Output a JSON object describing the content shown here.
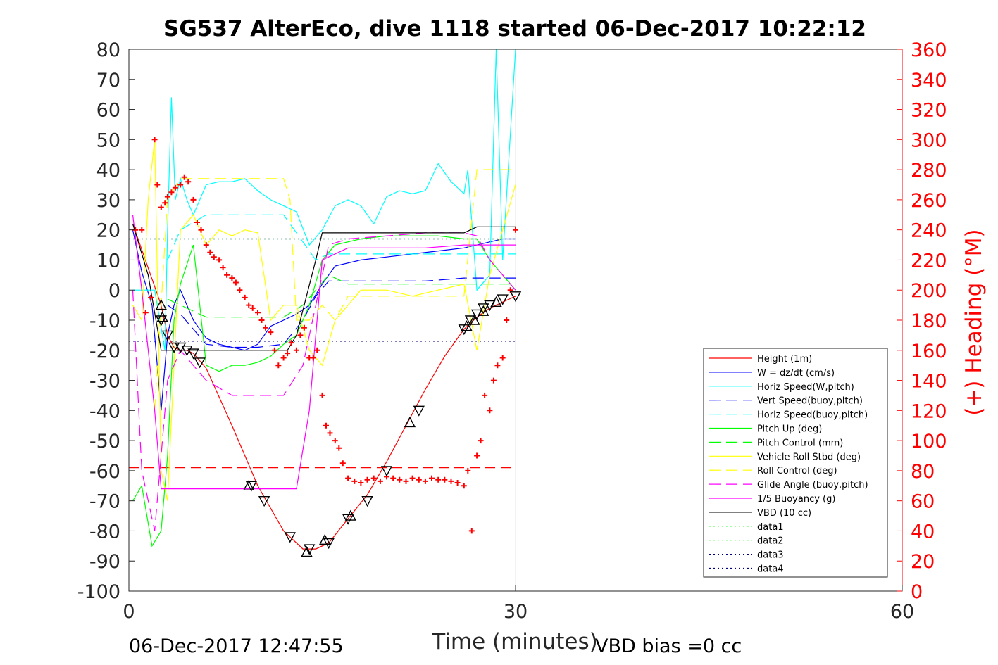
{
  "chart_data": {
    "type": "line",
    "title": "SG537 AlterEco, dive 1118 started 06-Dec-2017 10:22:12",
    "xlabel": "Time (minutes)",
    "ylabel_right": "(+) Heading (°M)",
    "footer_left": "06-Dec-2017 12:47:55",
    "footer_right": "VBD bias =0 cc",
    "xlim": [
      0,
      60
    ],
    "ylim_left": [
      -100,
      80
    ],
    "ylim_right": [
      0,
      360
    ],
    "x_ticks": [
      "0",
      "30",
      "60"
    ],
    "x_tick_values": [
      0,
      30,
      60
    ],
    "y_left_ticks": [
      "80",
      "70",
      "60",
      "50",
      "40",
      "30",
      "20",
      "10",
      "0",
      "-10",
      "-20",
      "-30",
      "-40",
      "-50",
      "-60",
      "-70",
      "-80",
      "-90",
      "-100"
    ],
    "y_left_tick_values": [
      80,
      70,
      60,
      50,
      40,
      30,
      20,
      10,
      0,
      -10,
      -20,
      -30,
      -40,
      -50,
      -60,
      -70,
      -80,
      -90,
      -100
    ],
    "y_right_ticks": [
      "360",
      "340",
      "320",
      "300",
      "280",
      "260",
      "240",
      "220",
      "200",
      "180",
      "160",
      "140",
      "120",
      "100",
      "80",
      "60",
      "40",
      "20",
      "0"
    ],
    "y_right_tick_values": [
      360,
      340,
      320,
      300,
      280,
      260,
      240,
      220,
      200,
      180,
      160,
      140,
      120,
      100,
      80,
      60,
      40,
      20,
      0
    ],
    "legend_position": "lower-right",
    "colors": {
      "right_axis": "#ff0000",
      "axis": "#262626"
    },
    "legend": [
      {
        "label": "Height (1m)",
        "color": "#ff0000",
        "dash": ""
      },
      {
        "label": "W = dz/dt (cm/s)",
        "color": "#0000ff",
        "dash": ""
      },
      {
        "label": "Horiz Speed(W,pitch)",
        "color": "#00ffff",
        "dash": ""
      },
      {
        "label": "Vert Speed(buoy,pitch)",
        "color": "#0000ff",
        "dash": "16,8"
      },
      {
        "label": "Horiz Speed(buoy,pitch)",
        "color": "#00ffff",
        "dash": "16,8"
      },
      {
        "label": "Pitch Up (deg)",
        "color": "#00ff00",
        "dash": ""
      },
      {
        "label": "Pitch Control (mm)",
        "color": "#00ff00",
        "dash": "16,8"
      },
      {
        "label": "Vehicle Roll Stbd (deg)",
        "color": "#ffff00",
        "dash": ""
      },
      {
        "label": "Roll Control (deg)",
        "color": "#ffff00",
        "dash": "16,8"
      },
      {
        "label": "Glide Angle (buoy,pitch)",
        "color": "#ff00ff",
        "dash": "16,8"
      },
      {
        "label": "1/5 Buoyancy (g)",
        "color": "#ff00ff",
        "dash": ""
      },
      {
        "label": "VBD (10 cc)",
        "color": "#000000",
        "dash": ""
      },
      {
        "label": "data1",
        "color": "#00ff00",
        "dash": "2,4"
      },
      {
        "label": "data2",
        "color": "#00ff00",
        "dash": "2,4"
      },
      {
        "label": "data3",
        "color": "#000080",
        "dash": "2,4"
      },
      {
        "label": "data4",
        "color": "#000080",
        "dash": "2,4"
      }
    ],
    "series": [
      {
        "name": "Height (1m)",
        "color": "#ff0000",
        "dash": "",
        "x": [
          0.3,
          2.5,
          3.0,
          3.5,
          4.0,
          4.5,
          5.0,
          6.0,
          8.0,
          10.0,
          12.0,
          13.5,
          14.5,
          15.5,
          17.0,
          18.5,
          20.0,
          21.5,
          23.0,
          24.5,
          26.0,
          27.0,
          28.0,
          29.0,
          30.0
        ],
        "y": [
          22,
          -5,
          -15,
          -19,
          -20,
          -20,
          -21,
          -26,
          -45,
          -65,
          -80,
          -86,
          -86,
          -84,
          -76,
          -68,
          -57,
          -45,
          -33,
          -22,
          -13,
          -9,
          -6,
          -4,
          -2
        ]
      },
      {
        "name": "W = dz/dt (cm/s)",
        "color": "#0000ff",
        "dash": "",
        "x": [
          0.3,
          1.0,
          1.8,
          2.5,
          3.0,
          3.5,
          4.0,
          5.0,
          6.0,
          7.0,
          8.0,
          9.0,
          10.0,
          11.0,
          12.0,
          13.0,
          14.0,
          15.0,
          16.0,
          18.0,
          20.0,
          22.0,
          24.0,
          26.0,
          27.0,
          28.0,
          29.0,
          30.0
        ],
        "y": [
          20,
          6,
          -5,
          -40,
          -15,
          -5,
          0,
          -10,
          -16,
          -18,
          -19,
          -20,
          -18,
          -12,
          -10,
          -8,
          -5,
          2,
          8,
          10,
          11,
          12,
          13,
          14,
          15,
          16,
          17,
          17
        ]
      },
      {
        "name": "Horiz Speed(W,pitch)",
        "color": "#00ffff",
        "dash": "",
        "x": [
          0.3,
          1.0,
          2.0,
          2.8,
          3.0,
          3.3,
          3.6,
          4.0,
          4.5,
          5.0,
          6.0,
          7.0,
          8.0,
          9.0,
          10.0,
          11.0,
          12.0,
          13.0,
          14.0,
          15.0,
          16.0,
          17.0,
          18.0,
          19.0,
          20.0,
          21.0,
          22.0,
          23.0,
          24.0,
          25.0,
          26.0,
          26.3,
          27.0,
          28.0,
          28.5,
          29.0,
          30.0
        ],
        "y": [
          0,
          0,
          0,
          -20,
          20,
          64,
          30,
          37,
          30,
          25,
          35,
          36,
          36,
          37,
          33,
          30,
          28,
          26,
          15,
          20,
          28,
          30,
          28,
          22,
          31,
          33,
          32,
          33,
          42,
          36,
          32,
          40,
          0,
          5,
          80,
          10,
          80
        ]
      },
      {
        "name": "Vert Speed(buoy,pitch)",
        "color": "#0000ff",
        "dash": "16,8",
        "x": [
          3.0,
          4.0,
          6.0,
          8.0,
          10.0,
          12.0,
          13.5,
          14.5,
          15.5,
          17.0,
          20.0,
          23.0,
          26.0,
          27.0,
          28.0,
          30.0
        ],
        "y": [
          -5,
          -8,
          -18,
          -19,
          -19,
          -18,
          -10,
          -2,
          3,
          3,
          3,
          3,
          4,
          4,
          4,
          4
        ]
      },
      {
        "name": "Horiz Speed(buoy,pitch)",
        "color": "#00ffff",
        "dash": "16,8",
        "x": [
          3.0,
          4.0,
          6.0,
          8.0,
          10.0,
          12.0,
          13.5,
          14.5,
          15.5,
          17.0,
          20.0,
          23.0,
          26.0,
          27.0,
          28.0,
          30.0
        ],
        "y": [
          10,
          20,
          25,
          25,
          25,
          25,
          16,
          10,
          12,
          12,
          12,
          12,
          12,
          12,
          12,
          12
        ]
      },
      {
        "name": "Pitch Up (deg)",
        "color": "#00ff00",
        "dash": "",
        "x": [
          0.3,
          1.0,
          1.8,
          2.5,
          3.0,
          3.5,
          4.0,
          5.0,
          6.0,
          7.0,
          8.0,
          9.0,
          10.0,
          11.0,
          12.0,
          13.0,
          14.0,
          15.0,
          16.0,
          18.0,
          20.0,
          22.0,
          24.0,
          26.0,
          27.0,
          28.0,
          30.0
        ],
        "y": [
          -70,
          -65,
          -85,
          -80,
          -55,
          -10,
          2,
          15,
          -25,
          -27,
          -25,
          -25,
          -24,
          -22,
          -18,
          -15,
          -5,
          10,
          15,
          17,
          18,
          18,
          18,
          17,
          17,
          10,
          0
        ]
      },
      {
        "name": "Pitch Control (mm)",
        "color": "#00ff00",
        "dash": "16,8",
        "x": [
          3.0,
          4.0,
          6.0,
          8.0,
          10.0,
          12.0,
          13.5,
          14.5,
          15.5,
          17.0,
          20.0,
          23.0,
          26.0,
          27.0,
          28.0,
          30.0
        ],
        "y": [
          -3,
          -5,
          -9,
          -9,
          -9,
          -9,
          -5,
          0,
          5,
          2,
          2,
          2,
          2,
          2,
          2,
          2
        ]
      },
      {
        "name": "Vehicle Roll Stbd (deg)",
        "color": "#ffff00",
        "dash": "",
        "x": [
          0.3,
          1.0,
          1.5,
          2.0,
          2.5,
          3.0,
          4.0,
          5.0,
          6.0,
          7.0,
          8.0,
          9.0,
          10.0,
          11.0,
          12.0,
          13.0,
          14.0,
          15.0,
          16.0,
          18.0,
          20.0,
          22.0,
          24.0,
          26.0,
          27.0,
          28.0,
          30.0
        ],
        "y": [
          -5,
          -10,
          30,
          50,
          -60,
          -70,
          20,
          25,
          15,
          20,
          18,
          20,
          19,
          -10,
          -5,
          -5,
          -20,
          -25,
          -10,
          0,
          0,
          -2,
          0,
          2,
          -20,
          5,
          35
        ]
      },
      {
        "name": "Roll Control (deg)",
        "color": "#ffff00",
        "dash": "16,8",
        "x": [
          2.0,
          3.0,
          4.0,
          5.0,
          6.0,
          8.0,
          10.0,
          12.0,
          12.5,
          13.0,
          14.0,
          15.0,
          16.0,
          17.0,
          20.0,
          23.0,
          26.0,
          27.0,
          28.0,
          30.0
        ],
        "y": [
          -40,
          30,
          37,
          37,
          37,
          37,
          37,
          37,
          30,
          -10,
          -10,
          -5,
          -10,
          -2,
          -2,
          -2,
          -2,
          40,
          40,
          40
        ]
      },
      {
        "name": "Glide Angle (buoy,pitch)",
        "color": "#ff00ff",
        "dash": "16,8",
        "x": [
          0.3,
          1.0,
          2.0,
          3.0,
          4.0,
          6.0,
          8.0,
          10.0,
          12.0,
          13.5,
          14.5,
          15.5,
          17.0,
          20.0,
          23.0,
          26.0,
          27.0,
          28.0,
          30.0
        ],
        "y": [
          0,
          -60,
          -80,
          -30,
          -20,
          -30,
          -35,
          -35,
          -35,
          -25,
          -5,
          15,
          17,
          18,
          19,
          19,
          18,
          10,
          0
        ]
      },
      {
        "name": "1/5 Buoyancy (g)",
        "color": "#ff00ff",
        "dash": "",
        "x": [
          0.3,
          1.0,
          2.0,
          2.5,
          3.0,
          5.0,
          8.0,
          10.0,
          12.0,
          13.0,
          14.0,
          15.0,
          17.0,
          20.0,
          23.0,
          26.0,
          27.0,
          28.0,
          30.0
        ],
        "y": [
          25,
          0,
          -40,
          -66,
          -66,
          -66,
          -66,
          -66,
          -66,
          -66,
          -40,
          10,
          14,
          14,
          14,
          15,
          15,
          15,
          15
        ]
      },
      {
        "name": "VBD (10 cc)",
        "color": "#000000",
        "dash": "",
        "x": [
          0.3,
          1.5,
          2.3,
          2.5,
          3.0,
          5.0,
          8.0,
          10.0,
          12.0,
          12.3,
          13.0,
          14.5,
          15.0,
          17.0,
          20.0,
          23.0,
          26.0,
          27.0,
          30.0
        ],
        "y": [
          22,
          5,
          -15,
          -20,
          -20,
          -20,
          -20,
          -20,
          -20,
          -20,
          -15,
          10,
          19,
          19,
          19,
          19,
          19,
          21,
          21
        ]
      }
    ],
    "hlines": [
      {
        "name": "data1",
        "color": "#00ff00",
        "dash": "2,4",
        "y": 17
      },
      {
        "name": "data3",
        "color": "#000080",
        "dash": "2,4",
        "y": 17
      },
      {
        "name": "data4",
        "color": "#000080",
        "dash": "2,4",
        "y": -17
      },
      {
        "name": "pitch-ref",
        "color": "#ff0000",
        "dash": "14,8",
        "y": -59
      }
    ],
    "heading": {
      "color": "#ff0000",
      "x": [
        0.5,
        1.0,
        1.3,
        1.7,
        2.0,
        2.2,
        2.5,
        2.8,
        3.0,
        3.3,
        3.6,
        4.0,
        4.3,
        4.6,
        5.0,
        5.3,
        5.6,
        6.0,
        6.3,
        6.6,
        7.0,
        7.3,
        7.6,
        8.0,
        8.3,
        8.6,
        9.0,
        9.3,
        9.6,
        10.0,
        10.3,
        10.6,
        11.0,
        11.3,
        11.6,
        12.0,
        12.3,
        12.6,
        13.0,
        13.3,
        13.6,
        14.0,
        14.3,
        14.6,
        15.0,
        15.3,
        15.6,
        16.0,
        16.3,
        16.6,
        17.0,
        17.5,
        18.0,
        18.5,
        19.0,
        19.5,
        20.0,
        20.5,
        21.0,
        21.5,
        22.0,
        22.5,
        23.0,
        23.5,
        24.0,
        24.5,
        25.0,
        25.5,
        26.0,
        26.3,
        26.6,
        27.0,
        27.3,
        27.6,
        28.0,
        28.3,
        28.6,
        29.0,
        29.3,
        29.6,
        30.0
      ],
      "y": [
        240,
        240,
        185,
        195,
        300,
        270,
        255,
        258,
        262,
        265,
        268,
        270,
        275,
        272,
        260,
        245,
        240,
        230,
        225,
        222,
        220,
        215,
        210,
        208,
        205,
        200,
        195,
        190,
        188,
        185,
        180,
        175,
        172,
        160,
        150,
        155,
        158,
        165,
        160,
        170,
        175,
        155,
        155,
        160,
        130,
        110,
        105,
        100,
        95,
        85,
        75,
        73,
        72,
        74,
        75,
        73,
        76,
        75,
        74,
        73,
        75,
        74,
        73,
        75,
        74,
        74,
        73,
        72,
        70,
        80,
        40,
        90,
        100,
        130,
        120,
        140,
        150,
        155,
        180,
        200,
        240
      ]
    },
    "markers_down": {
      "x": [
        2.5,
        3.0,
        3.5,
        4.0,
        4.5,
        5.0,
        5.5,
        9.5,
        10.5,
        12.5,
        14.0,
        15.5,
        17.0,
        18.5,
        20.0,
        22.5,
        26.0,
        26.5,
        27.0,
        27.5,
        28.0,
        29.0,
        30.0
      ],
      "y": [
        -10,
        -15,
        -19,
        -19,
        -20,
        -21,
        -24,
        -65,
        -70,
        -82,
        -86,
        -84,
        -76,
        -70,
        -60,
        -40,
        -13,
        -10,
        -8,
        -6,
        -5,
        -3,
        -2
      ]
    },
    "markers_up": {
      "x": [
        2.5,
        2.6,
        9.3,
        13.8,
        15.2,
        17.2,
        21.8,
        26.2,
        26.8,
        27.5,
        28.5
      ],
      "y": [
        -5,
        -9,
        -65,
        -87,
        -83,
        -75,
        -44,
        -12,
        -10,
        -7,
        -4
      ]
    }
  }
}
